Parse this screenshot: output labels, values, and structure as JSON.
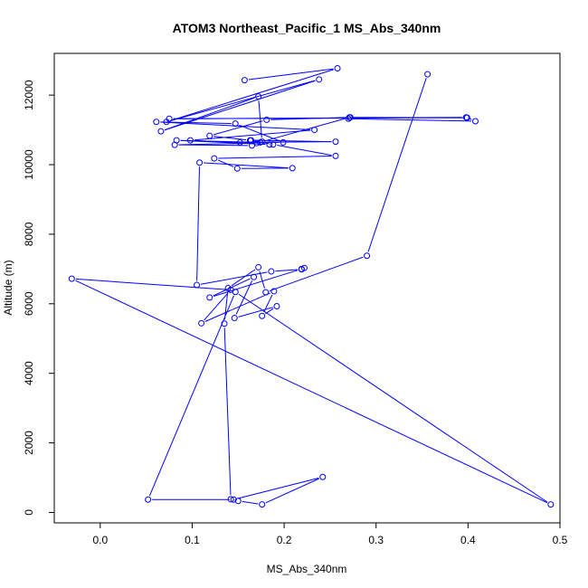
{
  "chart_data": {
    "type": "scatter",
    "title": "ATOM3 Northeast_Pacific_1 MS_Abs_340nm",
    "xlabel": "MS_Abs_340nm",
    "ylabel": "Altitude (m)",
    "xlim": [
      -0.05,
      0.5
    ],
    "ylim": [
      -300,
      13200
    ],
    "x_ticks": [
      0.0,
      0.1,
      0.2,
      0.3,
      0.4,
      0.5
    ],
    "x_tick_labels": [
      "0.0",
      "0.1",
      "0.2",
      "0.3",
      "0.4",
      "0.5"
    ],
    "y_ticks": [
      0,
      2000,
      4000,
      6000,
      8000,
      10000,
      12000
    ],
    "y_tick_labels": [
      "0",
      "2000",
      "4000",
      "6000",
      "8000",
      "10000",
      "12000"
    ],
    "grid": false,
    "connected": true,
    "color": "#0000ff",
    "series": [
      {
        "x": [
          0.157,
          0.258,
          0.072,
          0.238,
          0.066,
          0.172,
          0.176,
          0.271,
          0.399,
          0.075,
          0.398,
          0.408,
          0.27,
          0.272,
          0.181,
          0.119,
          0.163,
          0.256,
          0.152,
          0.199,
          0.147,
          0.061,
          0.233,
          0.098,
          0.184,
          0.083,
          0.174,
          0.165,
          0.081,
          0.17,
          0.164,
          0.188,
          0.256,
          0.124,
          0.149,
          0.209,
          0.108,
          0.105,
          0.186,
          0.219,
          0.222,
          0.219,
          0.119,
          0.167,
          0.146,
          0.192,
          0.176,
          0.189,
          0.11,
          0.142,
          -0.031,
          0.49,
          0.147,
          0.052,
          0.145,
          0.242,
          0.176,
          0.15,
          0.142,
          0.135,
          0.139,
          0.172,
          0.18,
          0.29,
          0.356
        ],
        "y": [
          12430,
          12770,
          11230,
          12450,
          10960,
          11960,
          10660,
          11360,
          11350,
          11320,
          11360,
          11250,
          11320,
          11360,
          11290,
          10830,
          10700,
          10660,
          10640,
          10640,
          11180,
          11230,
          11000,
          10700,
          10580,
          10700,
          10640,
          10550,
          10570,
          10620,
          10700,
          10580,
          10250,
          10180,
          9890,
          9900,
          10060,
          6540,
          6930,
          6990,
          7030,
          7000,
          6180,
          6770,
          5590,
          5930,
          5650,
          6360,
          5440,
          6400,
          6720,
          230,
          6340,
          370,
          370,
          1020,
          230,
          330,
          380,
          5430,
          6450,
          7050,
          6330,
          7380,
          12600
        ]
      }
    ]
  }
}
